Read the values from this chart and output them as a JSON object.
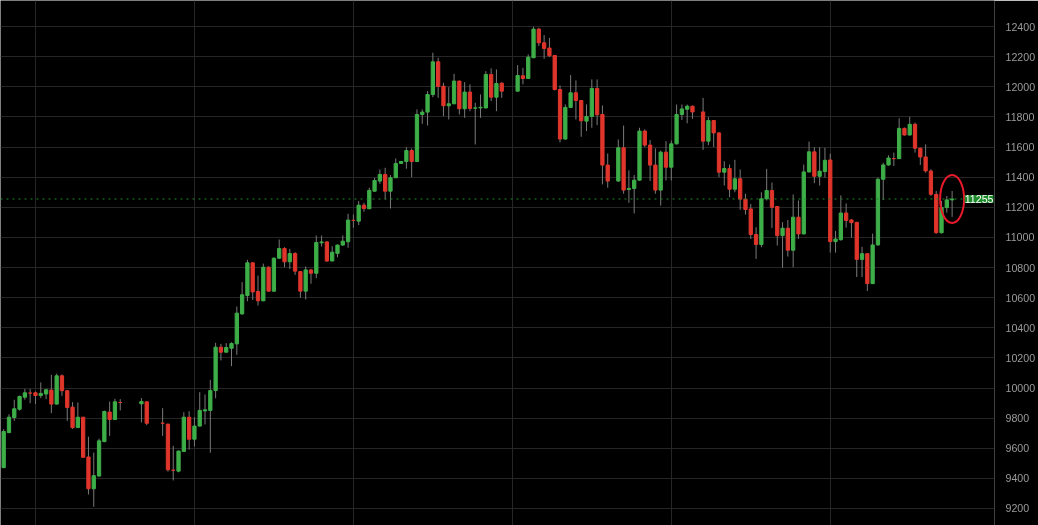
{
  "chart_data": {
    "type": "candlestick",
    "categories": [
      null,
      null,
      null,
      null,
      null,
      null,
      null,
      null,
      null,
      null,
      null,
      null,
      null,
      null,
      null,
      null,
      null,
      null,
      null,
      null,
      null,
      null,
      null,
      null,
      null,
      null,
      null,
      null,
      null,
      null,
      null,
      null,
      null,
      null,
      null,
      null,
      null,
      null,
      null,
      null,
      null,
      null,
      null,
      null,
      null,
      null,
      null,
      null,
      null,
      null,
      null,
      null,
      null,
      null,
      null,
      null,
      null,
      null,
      null,
      null,
      null,
      null,
      null,
      null,
      null,
      null,
      null,
      null,
      null,
      null,
      null,
      null,
      null,
      null,
      null,
      null,
      null,
      null,
      null,
      null,
      null,
      null,
      null,
      null,
      null,
      null,
      null,
      null,
      null,
      null,
      null,
      null,
      null,
      null,
      null,
      null,
      null,
      null,
      null,
      null,
      null,
      null,
      null,
      null,
      null,
      null,
      null,
      null,
      null,
      null,
      null,
      null,
      null,
      null,
      null,
      null,
      null,
      null,
      null,
      null,
      null,
      null,
      null,
      null,
      null,
      null,
      null,
      null,
      null,
      null,
      null,
      null,
      null,
      null,
      null,
      null,
      null,
      null,
      null,
      null,
      null,
      null,
      null,
      null,
      null,
      null,
      null,
      null,
      null,
      null,
      null,
      null,
      null,
      null,
      null,
      null,
      null,
      null,
      null,
      null,
      null,
      null,
      null,
      null,
      null,
      null,
      null,
      null,
      null,
      null,
      null,
      null,
      null,
      null,
      null,
      null,
      null,
      null,
      null,
      null
    ],
    "ohlc": [
      [
        9471,
        9726,
        9470,
        9711
      ],
      [
        9704,
        9826,
        9700,
        9806
      ],
      [
        9804,
        9922,
        9782,
        9862
      ],
      [
        9859,
        9950,
        9850,
        9944
      ],
      [
        9939,
        9993,
        9922,
        9968
      ],
      [
        9966,
        9993,
        9899,
        9966
      ],
      [
        9968,
        9977,
        9893,
        9950
      ],
      [
        9950,
        10037,
        9933,
        9964
      ],
      [
        9960,
        9993,
        9926,
        9988
      ],
      [
        9986,
        10088,
        9833,
        9893
      ],
      [
        9893,
        10095,
        9890,
        10081
      ],
      [
        10081,
        10090,
        9948,
        9982
      ],
      [
        9982,
        9984,
        9782,
        9871
      ],
      [
        9873,
        9906,
        9728,
        9737
      ],
      [
        9737,
        9904,
        9735,
        9806
      ],
      [
        9806,
        9808,
        9536,
        9540
      ],
      [
        9542,
        9677,
        9293,
        9331
      ],
      [
        9331,
        9571,
        9211,
        9418
      ],
      [
        9415,
        9664,
        9413,
        9649
      ],
      [
        9644,
        9850,
        9640,
        9844
      ],
      [
        9840,
        9910,
        9682,
        9791
      ],
      [
        9791,
        9928,
        9788,
        9908
      ],
      [
        9904,
        9926,
        9851,
        9904
      ],
      null,
      null,
      null,
      [
        9895,
        9933,
        9771,
        9910
      ],
      [
        9908,
        9910,
        9753,
        9766
      ],
      null,
      null,
      [
        9766,
        9866,
        9682,
        9766
      ],
      [
        9760,
        9763,
        9445,
        9457
      ],
      [
        9454,
        9616,
        9386,
        9454
      ],
      [
        9448,
        9585,
        9440,
        9581
      ],
      [
        9579,
        9839,
        9577,
        9806
      ],
      [
        9806,
        9846,
        9590,
        9660
      ],
      [
        9660,
        9806,
        9612,
        9747
      ],
      [
        9747,
        9972,
        9745,
        9851
      ],
      [
        9848,
        9957,
        9758,
        9855
      ],
      [
        9851,
        10054,
        9570,
        9983
      ],
      [
        9983,
        10300,
        9932,
        10271
      ],
      [
        10271,
        10293,
        10183,
        10238
      ],
      [
        10238,
        10298,
        10236,
        10269
      ],
      [
        10264,
        10304,
        10145,
        10295
      ],
      [
        10293,
        10541,
        10220,
        10497
      ],
      [
        10492,
        10703,
        10486,
        10619
      ],
      [
        10614,
        10851,
        10576,
        10831
      ],
      [
        10831,
        10835,
        10585,
        10638
      ],
      [
        10641,
        10747,
        10548,
        10579
      ],
      [
        10579,
        10826,
        10576,
        10802
      ],
      [
        10802,
        10808,
        10638,
        10643
      ],
      [
        10643,
        10866,
        10640,
        10862
      ],
      [
        10862,
        10986,
        10857,
        10926
      ],
      [
        10926,
        10935,
        10802,
        10838
      ],
      [
        10838,
        10924,
        10791,
        10893
      ],
      [
        10893,
        10902,
        10751,
        10776
      ],
      [
        10773,
        10776,
        10599,
        10643
      ],
      [
        10643,
        10807,
        10588,
        10784
      ],
      [
        10784,
        10791,
        10692,
        10762
      ],
      [
        10762,
        11012,
        10729,
        10966
      ],
      [
        10964,
        11012,
        10939,
        10970
      ],
      [
        10970,
        10975,
        10838,
        10843
      ],
      [
        10843,
        10942,
        10843,
        10902
      ],
      [
        10894,
        10953,
        10868,
        10949
      ],
      [
        10949,
        11013,
        10945,
        10975
      ],
      [
        10971,
        11157,
        10931,
        11115
      ],
      [
        11113,
        11152,
        11064,
        11113
      ],
      [
        11108,
        11241,
        11082,
        11214
      ],
      [
        11214,
        11230,
        11170,
        11192
      ],
      [
        11190,
        11330,
        11188,
        11312
      ],
      [
        11307,
        11396,
        11303,
        11378
      ],
      [
        11374,
        11451,
        11356,
        11418
      ],
      [
        11418,
        11462,
        11252,
        11307
      ],
      [
        11307,
        11414,
        11192,
        11396
      ],
      [
        11396,
        11524,
        11394,
        11491
      ],
      [
        11491,
        11507,
        11487,
        11504
      ],
      [
        11504,
        11599,
        11456,
        11577
      ],
      [
        11577,
        11590,
        11400,
        11504
      ],
      [
        11504,
        11850,
        11500,
        11816
      ],
      [
        11816,
        11850,
        11754,
        11832
      ],
      [
        11832,
        11971,
        11743,
        11949
      ],
      [
        11949,
        12226,
        11931,
        12166
      ],
      [
        12166,
        12193,
        11927,
        12002
      ],
      [
        12004,
        12027,
        11805,
        11874
      ],
      [
        11874,
        11998,
        11783,
        11887
      ],
      [
        11887,
        12086,
        11885,
        12038
      ],
      [
        12038,
        12040,
        11816,
        11854
      ],
      [
        11854,
        12031,
        11794,
        11965
      ],
      [
        11965,
        12016,
        11838,
        11856
      ],
      [
        11858,
        11894,
        11617,
        11860
      ],
      [
        11860,
        11949,
        11794,
        11864
      ],
      [
        11860,
        12104,
        11856,
        12082
      ],
      [
        12082,
        12122,
        11905,
        11931
      ],
      [
        11931,
        12115,
        11838,
        12022
      ],
      [
        12024,
        12030,
        11927,
        11971
      ],
      null,
      null,
      [
        11971,
        12144,
        11969,
        12075
      ],
      [
        12073,
        12126,
        12016,
        12055
      ],
      [
        12055,
        12215,
        12053,
        12197
      ],
      [
        12193,
        12398,
        12190,
        12383
      ],
      [
        12383,
        12392,
        12270,
        12292
      ],
      [
        12292,
        12343,
        12186,
        12255
      ],
      [
        12257,
        12325,
        12197,
        12206
      ],
      [
        12208,
        12210,
        11976,
        11982
      ],
      [
        11982,
        12009,
        11631,
        11653
      ],
      [
        11653,
        11883,
        11647,
        11863
      ],
      [
        11863,
        12078,
        11860,
        11960
      ],
      [
        11960,
        12042,
        11783,
        11909
      ],
      [
        11909,
        11912,
        11668,
        11774
      ],
      [
        11772,
        11883,
        11706,
        11803
      ],
      [
        11803,
        12049,
        11728,
        11989
      ],
      [
        11989,
        12049,
        11745,
        11814
      ],
      [
        11816,
        11876,
        11352,
        11480
      ],
      [
        11480,
        11557,
        11330,
        11374
      ],
      null,
      [
        11374,
        11650,
        11370,
        11595
      ],
      [
        11595,
        11743,
        11290,
        11314
      ],
      [
        11318,
        11445,
        11230,
        11325
      ],
      [
        11325,
        11414,
        11159,
        11380
      ],
      [
        11380,
        11728,
        11376,
        11706
      ],
      [
        11706,
        11717,
        11599,
        11613
      ],
      [
        11613,
        11646,
        11374,
        11480
      ],
      [
        11480,
        11591,
        11290,
        11314
      ],
      [
        11314,
        11577,
        11211,
        11566
      ],
      [
        11566,
        11639,
        11378,
        11466
      ],
      [
        11466,
        11643,
        11378,
        11621
      ],
      [
        11621,
        11882,
        11617,
        11816
      ],
      [
        11816,
        11882,
        11780,
        11853
      ],
      [
        11851,
        11882,
        11758,
        11871
      ],
      [
        11871,
        11875,
        11787,
        11833
      ],
      null,
      [
        11833,
        11926,
        11581,
        11639
      ],
      [
        11639,
        11800,
        11612,
        11776
      ],
      [
        11776,
        11778,
        11599,
        11694
      ],
      [
        11694,
        11698,
        11400,
        11433
      ],
      [
        11433,
        11506,
        11344,
        11457
      ],
      [
        11457,
        11484,
        11267,
        11320
      ],
      [
        11320,
        11515,
        11300,
        11389
      ],
      [
        11389,
        11451,
        11183,
        11254
      ],
      [
        11254,
        11289,
        11152,
        11185
      ],
      [
        11189,
        11222,
        10990,
        11019
      ],
      [
        11019,
        11068,
        10857,
        10953
      ],
      [
        10953,
        11300,
        10935,
        11256
      ],
      [
        11256,
        11455,
        11245,
        11311
      ],
      [
        11311,
        11364,
        11063,
        11200
      ],
      [
        11205,
        11207,
        10946,
        11012
      ],
      [
        11012,
        11101,
        10798,
        11061
      ],
      [
        11061,
        11116,
        10873,
        10915
      ],
      [
        10915,
        11285,
        10802,
        11134
      ],
      [
        11134,
        11245,
        10990,
        11023
      ],
      [
        11023,
        11484,
        11020,
        11435
      ],
      [
        11435,
        11636,
        11430,
        11568
      ],
      [
        11568,
        11599,
        11360,
        11406
      ],
      [
        11406,
        11599,
        11344,
        11440
      ],
      [
        11437,
        11595,
        11397,
        11512
      ],
      [
        11514,
        11556,
        10899,
        10972
      ],
      [
        10972,
        11043,
        10899,
        10989
      ],
      [
        10985,
        11279,
        10978,
        11162
      ],
      [
        11162,
        11226,
        11065,
        11113
      ],
      [
        11116,
        11120,
        10998,
        11098
      ],
      [
        11100,
        11103,
        10737,
        10854
      ],
      [
        10854,
        10938,
        10737,
        10892
      ],
      [
        10892,
        10896,
        10644,
        10693
      ],
      [
        10693,
        11025,
        10690,
        10950
      ],
      [
        10950,
        11397,
        10946,
        11386
      ],
      [
        11386,
        11496,
        11248,
        11481
      ],
      [
        11481,
        11545,
        11476,
        11527
      ],
      [
        11523,
        11563,
        11474,
        11523
      ],
      [
        11523,
        11791,
        11520,
        11724
      ],
      [
        11724,
        11730,
        11676,
        11680
      ],
      [
        11680,
        11800,
        11676,
        11751
      ],
      [
        11751,
        11762,
        11563,
        11592
      ],
      [
        11592,
        11596,
        11481,
        11534
      ],
      [
        11534,
        11618,
        11430,
        11441
      ],
      [
        11441,
        11452,
        11275,
        11286
      ],
      [
        11286,
        11308,
        11025,
        11031
      ],
      [
        11031,
        11242,
        11026,
        11198
      ],
      [
        11198,
        11275,
        11164,
        11249
      ],
      [
        11249,
        11308,
        11136,
        11255
      ]
    ],
    "colors": [
      "#3dae48",
      "#3dae48",
      "#3dae48",
      "#3dae48",
      "#3dae48",
      "#e0352b",
      "#e0352b",
      "#3dae48",
      "#3dae48",
      "#e0352b",
      "#3dae48",
      "#e0352b",
      "#e0352b",
      "#e0352b",
      "#3dae48",
      "#e0352b",
      "#e0352b",
      "#3dae48",
      "#3dae48",
      "#3dae48",
      "#e0352b",
      "#3dae48",
      "#e0352b",
      "#3dae48",
      "#3dae48",
      "#3dae48",
      "#3dae48",
      "#e0352b",
      "#3dae48",
      "#3dae48",
      "#e0352b",
      "#e0352b",
      "#e0352b",
      "#3dae48",
      "#3dae48",
      "#e0352b",
      "#3dae48",
      "#3dae48",
      "#3dae48",
      "#3dae48",
      "#3dae48",
      "#e0352b",
      "#3dae48",
      "#3dae48",
      "#3dae48",
      "#3dae48",
      "#3dae48",
      "#e0352b",
      "#e0352b",
      "#3dae48",
      "#e0352b",
      "#3dae48",
      "#3dae48",
      "#e0352b",
      "#3dae48",
      "#e0352b",
      "#e0352b",
      "#3dae48",
      "#e0352b",
      "#3dae48",
      "#3dae48",
      "#e0352b",
      "#3dae48",
      "#3dae48",
      "#3dae48",
      "#3dae48",
      "#e0352b",
      "#3dae48",
      "#e0352b",
      "#3dae48",
      "#3dae48",
      "#3dae48",
      "#e0352b",
      "#3dae48",
      "#3dae48",
      "#3dae48",
      "#3dae48",
      "#e0352b",
      "#3dae48",
      "#3dae48",
      "#3dae48",
      "#3dae48",
      "#e0352b",
      "#e0352b",
      "#3dae48",
      "#3dae48",
      "#e0352b",
      "#3dae48",
      "#e0352b",
      "#3dae48",
      "#3dae48",
      "#3dae48",
      "#e0352b",
      "#3dae48",
      "#e0352b",
      "#3dae48",
      "#3dae48",
      "#3dae48",
      "#e0352b",
      "#3dae48",
      "#3dae48",
      "#e0352b",
      "#e0352b",
      "#e0352b",
      "#e0352b",
      "#e0352b",
      "#3dae48",
      "#3dae48",
      "#e0352b",
      "#e0352b",
      "#3dae48",
      "#3dae48",
      "#e0352b",
      "#e0352b",
      "#e0352b",
      "#3dae48",
      "#3dae48",
      "#e0352b",
      "#3dae48",
      "#3dae48",
      "#3dae48",
      "#e0352b",
      "#e0352b",
      "#e0352b",
      "#3dae48",
      "#e0352b",
      "#3dae48",
      "#3dae48",
      "#3dae48",
      "#3dae48",
      "#e0352b",
      "#3dae48",
      "#e0352b",
      "#3dae48",
      "#e0352b",
      "#e0352b",
      "#3dae48",
      "#e0352b",
      "#3dae48",
      "#e0352b",
      "#e0352b",
      "#e0352b",
      "#e0352b",
      "#3dae48",
      "#3dae48",
      "#e0352b",
      "#e0352b",
      "#3dae48",
      "#e0352b",
      "#3dae48",
      "#e0352b",
      "#3dae48",
      "#3dae48",
      "#e0352b",
      "#3dae48",
      "#3dae48",
      "#e0352b",
      "#3dae48",
      "#3dae48",
      "#e0352b",
      "#e0352b",
      "#e0352b",
      "#3dae48",
      "#e0352b",
      "#3dae48",
      "#3dae48",
      "#3dae48",
      "#3dae48",
      "#e0352b",
      "#3dae48",
      "#e0352b",
      "#3dae48",
      "#e0352b",
      "#e0352b",
      "#e0352b",
      "#e0352b",
      "#e0352b",
      "#3dae48",
      "#3dae48",
      "#3dae48"
    ],
    "ylim": [
      9087,
      12573
    ],
    "yticks": [
      9200,
      9400,
      9600,
      9800,
      10000,
      10200,
      10400,
      10600,
      10800,
      11000,
      11200,
      11400,
      11600,
      11800,
      12000,
      12200,
      12400
    ],
    "ref_lines": [
      {
        "axis": "y",
        "value": 11255,
        "label": "11255",
        "color": "#1f8a2c",
        "line_style": "dotted"
      }
    ],
    "grid": true,
    "tick_labels": "y"
  }
}
